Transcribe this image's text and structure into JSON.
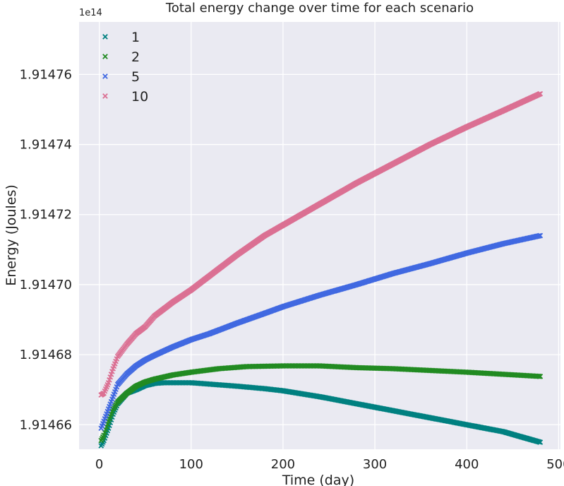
{
  "chart_data": {
    "type": "scatter",
    "title": "Total energy change over time for each scenario",
    "xlabel": "Time (day)",
    "ylabel": "Energy (Joules)",
    "y_offset_label": "1e14",
    "xlim": [
      -22,
      502
    ],
    "ylim": [
      1.914653,
      1.914775
    ],
    "xticks": [
      0,
      100,
      200,
      300,
      400,
      500
    ],
    "xtick_labels": [
      "0",
      "100",
      "200",
      "300",
      "400",
      "500"
    ],
    "yticks": [
      1.91466,
      1.91468,
      1.9147,
      1.91472,
      1.91474,
      1.91476
    ],
    "ytick_labels": [
      "1.91466",
      "1.91468",
      "1.91470",
      "1.91472",
      "1.91474",
      "1.91476"
    ],
    "grid": true,
    "legend_position": "top-left",
    "marker": "x",
    "background_color": "#EAEAF2",
    "grid_color": "#FFFFFF",
    "series": [
      {
        "name": "1",
        "color": "#008080",
        "points": [
          [
            2,
            1.914654
          ],
          [
            5,
            1.9146555
          ],
          [
            10,
            1.914659
          ],
          [
            15,
            1.914663
          ],
          [
            20,
            1.914666
          ],
          [
            30,
            1.914669
          ],
          [
            40,
            1.91467
          ],
          [
            50,
            1.9146712
          ],
          [
            60,
            1.9146718
          ],
          [
            70,
            1.914672
          ],
          [
            80,
            1.914672
          ],
          [
            100,
            1.914672
          ],
          [
            120,
            1.9146716
          ],
          [
            150,
            1.914671
          ],
          [
            180,
            1.9146703
          ],
          [
            200,
            1.9146697
          ],
          [
            240,
            1.914668
          ],
          [
            280,
            1.914666
          ],
          [
            320,
            1.914664
          ],
          [
            360,
            1.914662
          ],
          [
            400,
            1.91466
          ],
          [
            440,
            1.914658
          ],
          [
            480,
            1.914655
          ]
        ]
      },
      {
        "name": "2",
        "color": "#228B22",
        "points": [
          [
            2,
            1.9146555
          ],
          [
            5,
            1.914657
          ],
          [
            10,
            1.914661
          ],
          [
            15,
            1.9146645
          ],
          [
            20,
            1.9146665
          ],
          [
            30,
            1.914669
          ],
          [
            40,
            1.914671
          ],
          [
            50,
            1.9146722
          ],
          [
            60,
            1.914673
          ],
          [
            80,
            1.9146742
          ],
          [
            100,
            1.914675
          ],
          [
            130,
            1.914676
          ],
          [
            160,
            1.9146766
          ],
          [
            200,
            1.9146768
          ],
          [
            240,
            1.9146768
          ],
          [
            280,
            1.9146763
          ],
          [
            320,
            1.914676
          ],
          [
            360,
            1.9146755
          ],
          [
            400,
            1.914675
          ],
          [
            440,
            1.9146744
          ],
          [
            480,
            1.9146738
          ]
        ]
      },
      {
        "name": "5",
        "color": "#4169E1",
        "points": [
          [
            2,
            1.914659
          ],
          [
            5,
            1.914661
          ],
          [
            10,
            1.9146645
          ],
          [
            15,
            1.914668
          ],
          [
            20,
            1.9146715
          ],
          [
            30,
            1.9146745
          ],
          [
            40,
            1.9146768
          ],
          [
            50,
            1.9146785
          ],
          [
            60,
            1.9146798
          ],
          [
            80,
            1.9146822
          ],
          [
            100,
            1.9146843
          ],
          [
            120,
            1.914686
          ],
          [
            150,
            1.914689
          ],
          [
            180,
            1.9146918
          ],
          [
            200,
            1.9146937
          ],
          [
            240,
            1.914697
          ],
          [
            280,
            1.9147
          ],
          [
            320,
            1.9147032
          ],
          [
            360,
            1.914706
          ],
          [
            400,
            1.914709
          ],
          [
            440,
            1.9147117
          ],
          [
            480,
            1.914714
          ]
        ]
      },
      {
        "name": "10",
        "color": "#DB7093",
        "points": [
          [
            2,
            1.9146685
          ],
          [
            5,
            1.914669
          ],
          [
            10,
            1.914672
          ],
          [
            15,
            1.914676
          ],
          [
            20,
            1.9146795
          ],
          [
            30,
            1.914683
          ],
          [
            40,
            1.914686
          ],
          [
            50,
            1.914688
          ],
          [
            60,
            1.914691
          ],
          [
            80,
            1.914695
          ],
          [
            100,
            1.9146985
          ],
          [
            120,
            1.9147025
          ],
          [
            150,
            1.9147085
          ],
          [
            180,
            1.914714
          ],
          [
            200,
            1.914717
          ],
          [
            240,
            1.914723
          ],
          [
            280,
            1.914729
          ],
          [
            320,
            1.9147345
          ],
          [
            360,
            1.91474
          ],
          [
            400,
            1.914745
          ],
          [
            440,
            1.9147497
          ],
          [
            480,
            1.9147545
          ]
        ]
      }
    ]
  }
}
